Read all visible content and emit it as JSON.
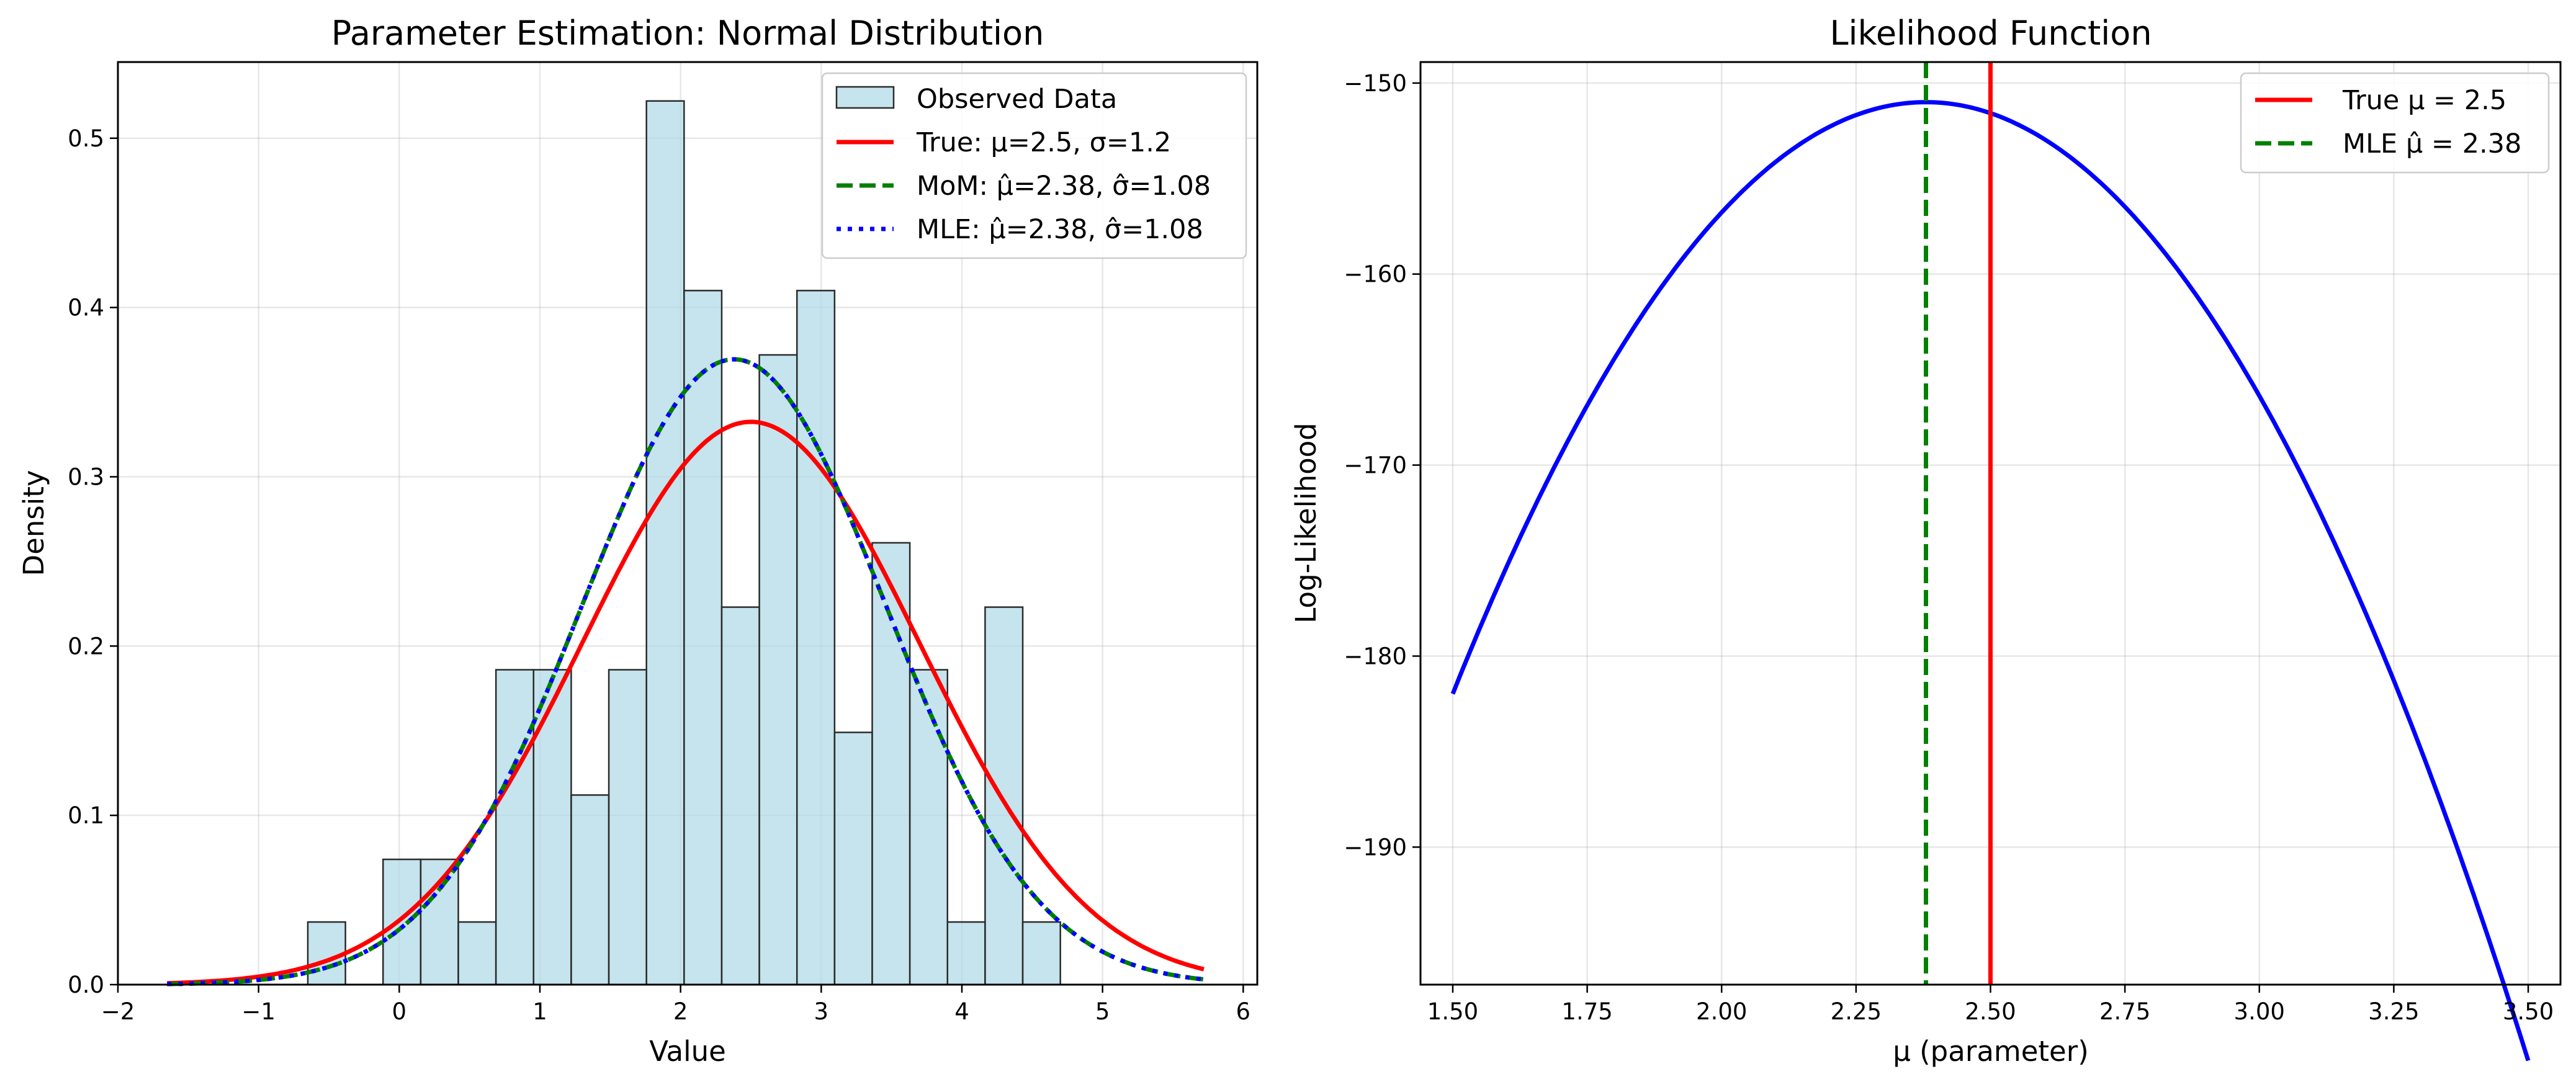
{
  "chart_data": [
    {
      "type": "bar",
      "title": "Parameter Estimation: Normal Distribution",
      "xlabel": "Value",
      "ylabel": "Density",
      "xlim": [
        -2,
        6.1
      ],
      "ylim": [
        0,
        0.545
      ],
      "grid": true,
      "legend_position": "top-right",
      "xticks": [
        "−2",
        "−1",
        "0",
        "1",
        "2",
        "3",
        "4",
        "5",
        "6"
      ],
      "yticks": [
        "0.0",
        "0.1",
        "0.2",
        "0.3",
        "0.4",
        "0.5"
      ],
      "histogram": {
        "name": "Observed Data",
        "color": "#add8e6",
        "edge_color": "#2b2b2b",
        "bin_start": -0.65,
        "bin_width": 0.2675,
        "values": [
          0.037,
          0.0,
          0.074,
          0.074,
          0.037,
          0.186,
          0.186,
          0.112,
          0.186,
          0.522,
          0.41,
          0.223,
          0.372,
          0.41,
          0.149,
          0.261,
          0.186,
          0.037,
          0.223,
          0.037
        ]
      },
      "series": [
        {
          "name": "True: μ=2.5, σ=1.2",
          "mu": 2.5,
          "sigma": 1.2,
          "color": "#ff0000",
          "style": "solid"
        },
        {
          "name": "MoM: μ̂=2.38, σ̂=1.08",
          "mu": 2.38,
          "sigma": 1.08,
          "color": "#008000",
          "style": "dashed"
        },
        {
          "name": "MLE: μ̂=2.38, σ̂=1.08",
          "mu": 2.38,
          "sigma": 1.08,
          "color": "#0000ff",
          "style": "dotted"
        }
      ],
      "curve_range": [
        -1.65,
        5.72
      ]
    },
    {
      "type": "line",
      "title": "Likelihood Function",
      "xlabel": "μ (parameter)",
      "ylabel": "Log-Likelihood",
      "xlim": [
        1.44,
        3.56
      ],
      "ylim": [
        -197.2,
        -148.9
      ],
      "grid": true,
      "legend_position": "top-right",
      "xticks": [
        "1.50",
        "1.75",
        "2.00",
        "2.25",
        "2.50",
        "2.75",
        "3.00",
        "3.25",
        "3.50"
      ],
      "yticks": [
        "−150",
        "−160",
        "−170",
        "−180",
        "−190"
      ],
      "series": [
        {
          "name": "",
          "color": "#0000ff",
          "style": "solid",
          "x_range": [
            1.5,
            3.5
          ],
          "peak_x": 2.38,
          "peak_y": -151.0,
          "curvature": 40.0
        }
      ],
      "vlines": [
        {
          "name": "True μ = 2.5",
          "x": 2.5,
          "color": "#ff0000",
          "style": "solid"
        },
        {
          "name": "MLE μ̂ = 2.38",
          "x": 2.38,
          "color": "#008000",
          "style": "dashed"
        }
      ]
    }
  ]
}
